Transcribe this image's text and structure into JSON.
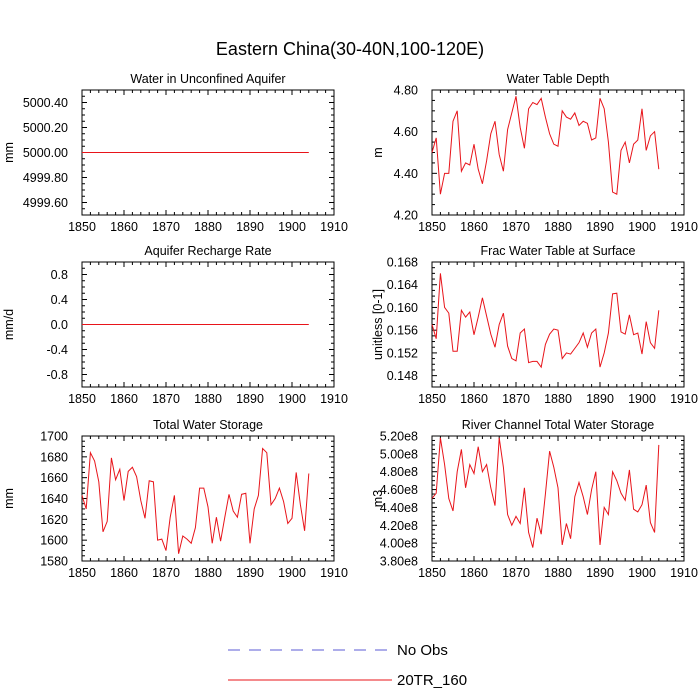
{
  "title": "Eastern China(30-40N,100-120E)",
  "legend": [
    {
      "label": "No Obs",
      "color": "#5b5bd6",
      "dash": true
    },
    {
      "label": "20TR_160",
      "color": "#e8141a",
      "dash": false
    }
  ],
  "colors": {
    "series": "#e8141a",
    "obs": "#5b5bd6"
  },
  "chart_data": [
    {
      "type": "line",
      "title": "Water in Unconfined Aquifer",
      "ylabel": "mm",
      "xlim": [
        1850,
        1910
      ],
      "ylim": [
        4999.5,
        5000.5
      ],
      "xticks": [
        1850,
        1860,
        1870,
        1880,
        1890,
        1900,
        1910
      ],
      "yticks": [
        4999.6,
        4999.8,
        5000.0,
        5000.2,
        5000.4
      ],
      "ytick_labels": [
        "4999.60",
        "4999.80",
        "5000.00",
        "5000.20",
        "5000.40"
      ],
      "series": [
        {
          "name": "20TR_160",
          "x": [
            1850,
            1904
          ],
          "values": [
            5000.0,
            5000.0
          ]
        }
      ]
    },
    {
      "type": "line",
      "title": "Water Table Depth",
      "ylabel": "m",
      "xlim": [
        1850,
        1910
      ],
      "ylim": [
        4.2,
        4.8
      ],
      "xticks": [
        1850,
        1860,
        1870,
        1880,
        1890,
        1900,
        1910
      ],
      "yticks": [
        4.2,
        4.4,
        4.6,
        4.8
      ],
      "ytick_labels": [
        "4.20",
        "4.40",
        "4.60",
        "4.80"
      ],
      "series": [
        {
          "name": "20TR_160",
          "x0": 1850,
          "step": 1,
          "values": [
            4.5,
            4.57,
            4.3,
            4.4,
            4.4,
            4.65,
            4.7,
            4.41,
            4.45,
            4.44,
            4.54,
            4.42,
            4.35,
            4.46,
            4.59,
            4.65,
            4.49,
            4.41,
            4.61,
            4.69,
            4.77,
            4.62,
            4.52,
            4.71,
            4.74,
            4.73,
            4.76,
            4.67,
            4.59,
            4.54,
            4.53,
            4.7,
            4.67,
            4.66,
            4.69,
            4.63,
            4.65,
            4.64,
            4.56,
            4.57,
            4.76,
            4.71,
            4.55,
            4.31,
            4.3,
            4.51,
            4.55,
            4.45,
            4.54,
            4.56,
            4.71,
            4.51,
            4.58,
            4.6,
            4.42
          ]
        }
      ]
    },
    {
      "type": "line",
      "title": "Aquifer Recharge Rate",
      "ylabel": "mm/d",
      "xlim": [
        1850,
        1910
      ],
      "ylim": [
        -1.0,
        1.0
      ],
      "xticks": [
        1850,
        1860,
        1870,
        1880,
        1890,
        1900,
        1910
      ],
      "yticks": [
        -0.8,
        -0.4,
        0.0,
        0.4,
        0.8
      ],
      "ytick_labels": [
        "-0.8",
        "-0.4",
        "0.0",
        "0.4",
        "0.8"
      ],
      "series": [
        {
          "name": "20TR_160",
          "x": [
            1850,
            1904
          ],
          "values": [
            0.0,
            0.0
          ]
        }
      ]
    },
    {
      "type": "line",
      "title": "Frac Water Table at Surface",
      "ylabel": "unitless [0-1]",
      "xlim": [
        1850,
        1910
      ],
      "ylim": [
        0.146,
        0.168
      ],
      "xticks": [
        1850,
        1860,
        1870,
        1880,
        1890,
        1900,
        1910
      ],
      "yticks": [
        0.148,
        0.152,
        0.156,
        0.16,
        0.164,
        0.168
      ],
      "ytick_labels": [
        "0.148",
        "0.152",
        "0.156",
        "0.160",
        "0.164",
        "0.168"
      ],
      "series": [
        {
          "name": "20TR_160",
          "x0": 1850,
          "step": 1,
          "values": [
            0.157,
            0.1545,
            0.166,
            0.16,
            0.159,
            0.1523,
            0.1523,
            0.1595,
            0.1583,
            0.1592,
            0.1552,
            0.1583,
            0.1617,
            0.1585,
            0.1553,
            0.153,
            0.157,
            0.159,
            0.1532,
            0.151,
            0.1506,
            0.1555,
            0.1562,
            0.1503,
            0.1505,
            0.1505,
            0.1495,
            0.1535,
            0.1553,
            0.1562,
            0.156,
            0.151,
            0.152,
            0.1518,
            0.1528,
            0.1538,
            0.1555,
            0.153,
            0.1555,
            0.1562,
            0.1495,
            0.152,
            0.1555,
            0.1624,
            0.1625,
            0.1557,
            0.1553,
            0.1587,
            0.1552,
            0.1555,
            0.1518,
            0.1575,
            0.1538,
            0.1528,
            0.1595
          ]
        }
      ]
    },
    {
      "type": "line",
      "title": "Total Water Storage",
      "ylabel": "mm",
      "xlim": [
        1850,
        1910
      ],
      "ylim": [
        1580,
        1700
      ],
      "xticks": [
        1850,
        1860,
        1870,
        1880,
        1890,
        1900,
        1910
      ],
      "yticks": [
        1580,
        1600,
        1620,
        1640,
        1660,
        1680,
        1700
      ],
      "ytick_labels": [
        "1580",
        "1600",
        "1620",
        "1640",
        "1660",
        "1680",
        "1700"
      ],
      "series": [
        {
          "name": "20TR_160",
          "x0": 1850,
          "step": 1,
          "values": [
            1643,
            1630,
            1684,
            1676,
            1656,
            1608,
            1618,
            1679,
            1658,
            1668,
            1638,
            1666,
            1670,
            1661,
            1638,
            1621,
            1657,
            1656,
            1600,
            1601,
            1590,
            1622,
            1643,
            1587,
            1604,
            1601,
            1597,
            1612,
            1650,
            1650,
            1632,
            1597,
            1622,
            1599,
            1622,
            1644,
            1628,
            1622,
            1644,
            1645,
            1597,
            1630,
            1643,
            1688,
            1684,
            1634,
            1640,
            1650,
            1637,
            1616,
            1621,
            1665,
            1634,
            1609,
            1664
          ]
        }
      ]
    },
    {
      "type": "line",
      "title": "River Channel Total Water Storage",
      "ylabel": "m3",
      "xlim": [
        1850,
        1910
      ],
      "ylim": [
        380000000.0,
        520000000.0
      ],
      "xticks": [
        1850,
        1860,
        1870,
        1880,
        1890,
        1900,
        1910
      ],
      "yticks": [
        380000000.0,
        400000000.0,
        420000000.0,
        440000000.0,
        460000000.0,
        480000000.0,
        500000000.0,
        520000000.0
      ],
      "ytick_labels": [
        "3.80e8",
        "4.00e8",
        "4.20e8",
        "4.40e8",
        "4.60e8",
        "4.80e8",
        "5.00e8",
        "5.20e8"
      ],
      "series": [
        {
          "name": "20TR_160",
          "x0": 1850,
          "step": 1,
          "values": [
            450000000.0,
            456000000.0,
            518000000.0,
            488000000.0,
            450000000.0,
            436000000.0,
            480000000.0,
            505000000.0,
            462000000.0,
            488000000.0,
            478000000.0,
            508000000.0,
            480000000.0,
            488000000.0,
            462000000.0,
            442000000.0,
            518000000.0,
            485000000.0,
            432000000.0,
            420000000.0,
            430000000.0,
            422000000.0,
            462000000.0,
            412000000.0,
            395000000.0,
            428000000.0,
            410000000.0,
            455000000.0,
            503000000.0,
            485000000.0,
            462000000.0,
            398000000.0,
            422000000.0,
            405000000.0,
            452000000.0,
            468000000.0,
            452000000.0,
            432000000.0,
            460000000.0,
            480000000.0,
            398000000.0,
            440000000.0,
            432000000.0,
            480000000.0,
            470000000.0,
            456000000.0,
            448000000.0,
            482000000.0,
            438000000.0,
            435000000.0,
            443000000.0,
            465000000.0,
            423000000.0,
            412000000.0,
            510000000.0
          ]
        }
      ]
    }
  ]
}
